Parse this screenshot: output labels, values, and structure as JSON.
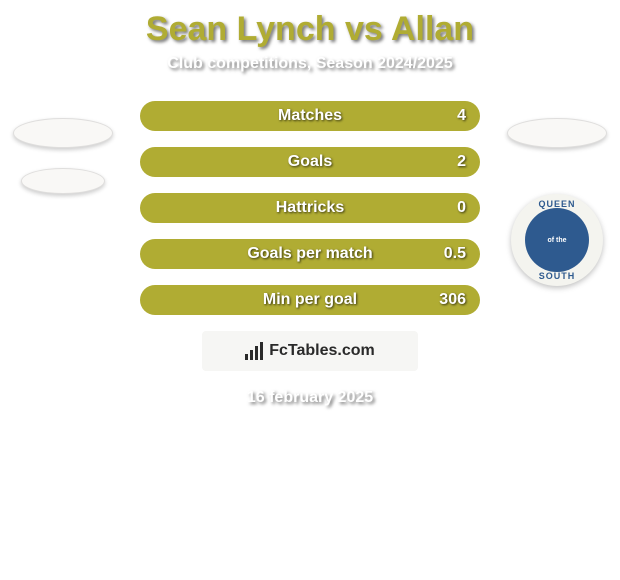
{
  "background_color": "#ffffff",
  "header": {
    "title": "Sean Lynch vs Allan",
    "title_color": "#b0ac33",
    "subtitle": "Club competitions, Season 2024/2025",
    "subtitle_color": "#ffffff"
  },
  "stats": {
    "bar_color": "#b0ac33",
    "label_color": "#ffffff",
    "value_color": "#ffffff",
    "rows": [
      {
        "label": "Matches",
        "value": "4"
      },
      {
        "label": "Goals",
        "value": "2"
      },
      {
        "label": "Hattricks",
        "value": "0"
      },
      {
        "label": "Goals per match",
        "value": "0.5"
      },
      {
        "label": "Min per goal",
        "value": "306"
      }
    ]
  },
  "left_logos": {
    "ellipse1_bg": "#f9f8f6",
    "ellipse2_bg": "#f9f8f6"
  },
  "right_logos": {
    "ellipse1_bg": "#f9f8f6",
    "badge": {
      "outer_bg": "#f4f4ef",
      "inner_bg": "#2e5a8f",
      "text_top": "QUEEN",
      "text_bottom": "SOUTH",
      "text_color": "#2e5a8f",
      "inner_text": "of the"
    }
  },
  "branding": {
    "box_bg": "#f6f6f4",
    "text": "FcTables.com",
    "text_color": "#2a2a2a",
    "icon_color": "#2a2a2a",
    "icon_bars": [
      6,
      10,
      14,
      18
    ]
  },
  "footer": {
    "date": "16 february 2025",
    "date_color": "#ffffff"
  }
}
